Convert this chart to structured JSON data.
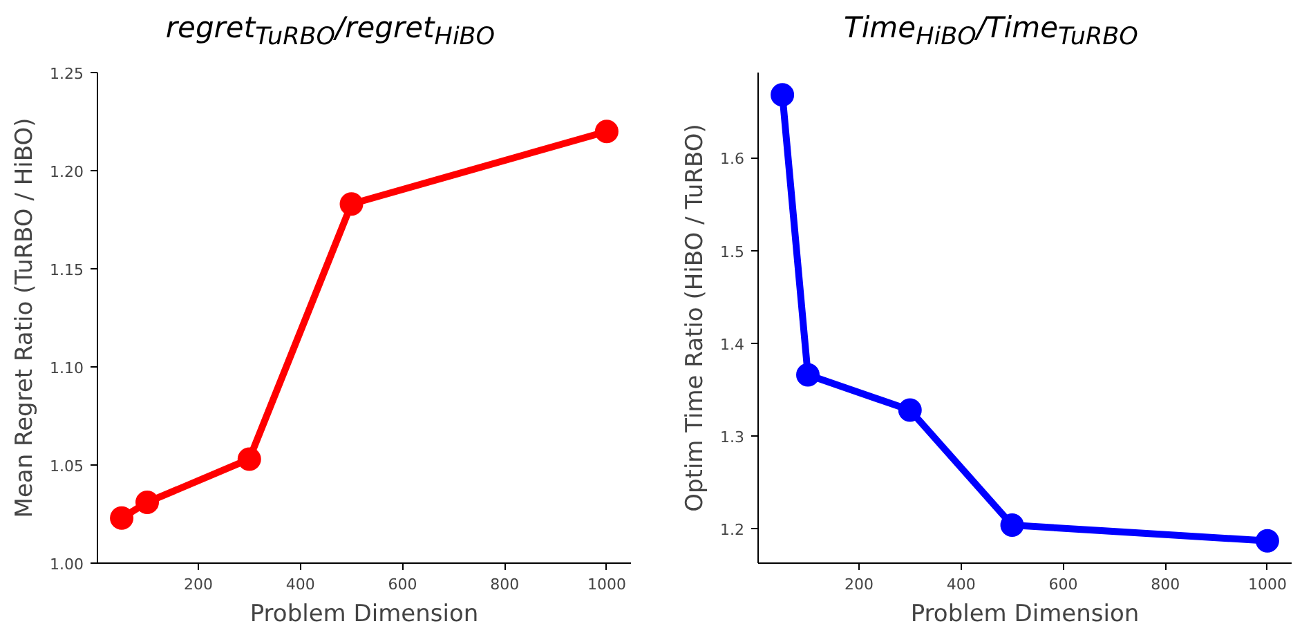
{
  "chart_data": [
    {
      "type": "line",
      "title": "regret$_{TuRBO}$/regret$_{HiBO}$",
      "xlabel": "Problem Dimension",
      "ylabel": "Mean Regret Ratio (TuRBO / HiBO)",
      "x": [
        50,
        100,
        300,
        500,
        1000
      ],
      "series": [
        {
          "color": "#ff0000",
          "values": [
            1.023,
            1.031,
            1.053,
            1.183,
            1.22
          ]
        }
      ],
      "xlim": [
        2.5,
        1047.5
      ],
      "xticks": [
        200,
        400,
        600,
        800,
        1000
      ],
      "ylim": [
        1.0,
        1.25
      ],
      "yticks": [
        {
          "value": 1.0,
          "label": "1.00"
        },
        1.05,
        {
          "value": 1.1,
          "label": "1.10"
        },
        1.15,
        {
          "value": 1.2,
          "label": "1.20"
        },
        1.25
      ],
      "grid": false,
      "marker": "circle",
      "line_style": "solid"
    },
    {
      "type": "line",
      "title": "Time$_{HiBO}$/Time$_{TuRBO}$",
      "xlabel": "Problem Dimension",
      "ylabel": "Optim Time Ratio (HiBO / TuRBO)",
      "x": [
        50,
        100,
        300,
        500,
        1000
      ],
      "series": [
        {
          "color": "#0000ff",
          "values": [
            1.668,
            1.366,
            1.328,
            1.204,
            1.187
          ]
        }
      ],
      "xlim": [
        2.5,
        1047.5
      ],
      "xticks": [
        200,
        400,
        600,
        800,
        1000
      ],
      "ylim": [
        1.163,
        1.692
      ],
      "yticks": [
        1.2,
        1.3,
        1.4,
        1.5,
        1.6
      ],
      "grid": false,
      "marker": "circle",
      "line_style": "solid"
    }
  ]
}
